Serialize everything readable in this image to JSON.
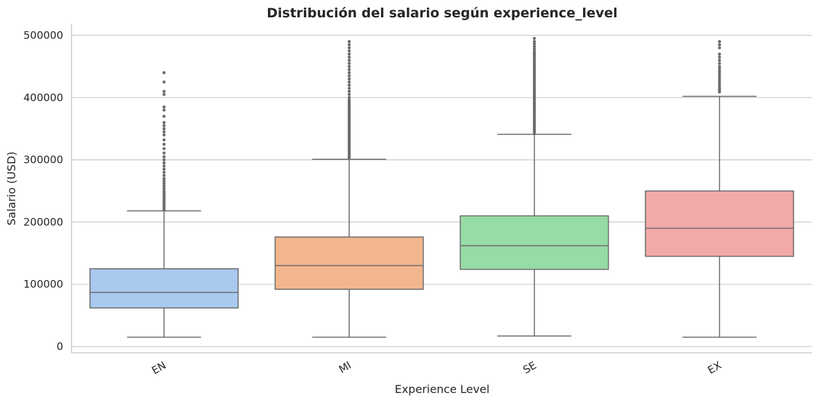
{
  "chart_data": {
    "type": "box",
    "title": "Distribución del salario según experience_level",
    "xlabel": "Experience Level",
    "ylabel": "Salario (USD)",
    "ylim": [
      -10000,
      520000
    ],
    "yticks": [
      0,
      100000,
      200000,
      300000,
      400000,
      500000
    ],
    "ytick_labels": [
      "0",
      "100000",
      "200000",
      "300000",
      "400000",
      "500000"
    ],
    "grid": "horizontal",
    "categories": [
      "EN",
      "MI",
      "SE",
      "EX"
    ],
    "boxes": [
      {
        "category": "EN",
        "color": "#a9c9ef",
        "whisker_low": 15000,
        "q1": 62000,
        "median": 87000,
        "q3": 125000,
        "whisker_high": 218000,
        "fliers": [
          220000,
          223000,
          226000,
          229000,
          232000,
          235000,
          238000,
          241000,
          244000,
          247000,
          250000,
          254000,
          258000,
          262000,
          266000,
          270000,
          275000,
          280000,
          285000,
          290000,
          295000,
          300000,
          305000,
          311000,
          318000,
          325000,
          332000,
          340000,
          345000,
          350000,
          355000,
          360000,
          370000,
          380000,
          385000,
          405000,
          410000,
          425000,
          440000
        ]
      },
      {
        "category": "MI",
        "color": "#f2b68f",
        "whisker_low": 15000,
        "q1": 92000,
        "median": 130000,
        "q3": 176000,
        "whisker_high": 301000,
        "fliers": [
          303000,
          306000,
          309000,
          312000,
          315000,
          318000,
          321000,
          324000,
          327000,
          330000,
          333000,
          336000,
          339000,
          342000,
          345000,
          348000,
          351000,
          354000,
          357000,
          360000,
          363000,
          366000,
          369000,
          372000,
          375000,
          378000,
          381000,
          384000,
          387000,
          390000,
          393000,
          396000,
          400000,
          405000,
          410000,
          415000,
          420000,
          425000,
          430000,
          435000,
          440000,
          445000,
          450000,
          455000,
          460000,
          465000,
          470000,
          475000,
          480000,
          485000,
          490000
        ]
      },
      {
        "category": "SE",
        "color": "#97dba6",
        "whisker_low": 17000,
        "q1": 124000,
        "median": 162000,
        "q3": 210000,
        "whisker_high": 341000,
        "fliers": [
          342000,
          345000,
          348000,
          351000,
          354000,
          357000,
          360000,
          363000,
          366000,
          369000,
          372000,
          375000,
          378000,
          381000,
          384000,
          387000,
          390000,
          393000,
          396000,
          399000,
          402000,
          405000,
          408000,
          411000,
          414000,
          417000,
          420000,
          423000,
          426000,
          429000,
          432000,
          435000,
          438000,
          441000,
          444000,
          447000,
          450000,
          453000,
          456000,
          459000,
          462000,
          465000,
          468000,
          471000,
          474000,
          478000,
          482000,
          486000,
          490000,
          495000
        ]
      },
      {
        "category": "EX",
        "color": "#f2aaa8",
        "whisker_low": 15000,
        "q1": 145000,
        "median": 190000,
        "q3": 250000,
        "whisker_high": 402000,
        "fliers": [
          409000,
          412000,
          415000,
          418000,
          422000,
          426000,
          430000,
          434000,
          438000,
          442000,
          446000,
          450000,
          455000,
          460000,
          465000,
          470000,
          480000,
          485000,
          490000
        ]
      }
    ]
  }
}
